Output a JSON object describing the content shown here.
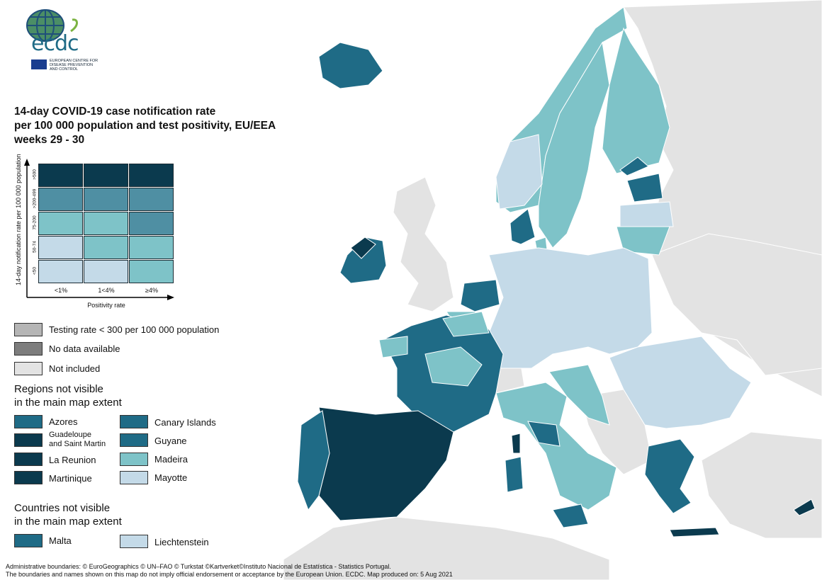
{
  "logo": {
    "wordmark": "ecdc",
    "subtitle_lines": [
      "EUROPEAN CENTRE FOR",
      "DISEASE PREVENTION",
      "AND CONTROL"
    ]
  },
  "title": {
    "lines": [
      "14-day COVID-19 case notification rate",
      "per 100 000 population and test positivity, EU/EEA",
      "weeks 29 - 30"
    ]
  },
  "matrix_legend": {
    "y_axis_label": "14-day notification rate per 100 000 population",
    "x_axis_label": "Positivity rate",
    "row_labels": [
      ">500",
      ">200-499",
      "75-200",
      "50-74",
      "<50"
    ],
    "col_labels": [
      "<1%",
      "1<4%",
      "≥4%"
    ],
    "cell_colors": [
      [
        "#0b3a4e",
        "#0b3a4e",
        "#0b3a4e"
      ],
      [
        "#4f8fa3",
        "#4f8fa3",
        "#4f8fa3"
      ],
      [
        "#7ec3c8",
        "#7ec3c8",
        "#4f8fa3"
      ],
      [
        "#c4dae8",
        "#7ec3c8",
        "#7ec3c8"
      ],
      [
        "#c4dae8",
        "#c4dae8",
        "#7ec3c8"
      ]
    ]
  },
  "status_legend": [
    {
      "label": "Testing rate < 300 per 100 000 population",
      "color": "#b5b5b5"
    },
    {
      "label": "No data available",
      "color": "#7d7d7d"
    },
    {
      "label": "Not included",
      "color": "#e3e3e3"
    }
  ],
  "regions_not_visible": {
    "heading": [
      "Regions not visible",
      "in the main map extent"
    ],
    "items": [
      {
        "label": "Azores",
        "color": "#1f6b86"
      },
      {
        "label": "Guadeloupe and Saint Martin",
        "label_lines": [
          "Guadeloupe",
          "and Saint Martin"
        ],
        "color": "#0b3a4e"
      },
      {
        "label": "La Reunion",
        "color": "#0b3a4e"
      },
      {
        "label": "Martinique",
        "color": "#0b3a4e"
      },
      {
        "label": "Canary Islands",
        "color": "#1f6b86"
      },
      {
        "label": "Guyane",
        "color": "#1f6b86"
      },
      {
        "label": "Madeira",
        "color": "#7ec3c8"
      },
      {
        "label": "Mayotte",
        "color": "#c4dae8"
      }
    ]
  },
  "countries_not_visible": {
    "heading": [
      "Countries not visible",
      "in the main map extent"
    ],
    "items": [
      {
        "label": "Malta",
        "color": "#1f6b86"
      },
      {
        "label": "Liechtenstein",
        "color": "#c4dae8"
      }
    ]
  },
  "map_colors": {
    "sea": "#ffffff",
    "not_included": "#e3e3e3",
    "light": "#c4dae8",
    "mid_light": "#7ec3c8",
    "mid": "#4f8fa3",
    "strong": "#1f6b86",
    "darkest": "#0b3a4e"
  },
  "footer": {
    "line1": "Administrative boundaries: © EuroGeographics © UN–FAO © Turkstat ©Kartverket©Instituto Nacional de Estatística - Statistics Portugal.",
    "line2": "The boundaries and names shown on this map do not imply official endorsement or acceptance by the European Union. ECDC. Map produced on: 5 Aug 2021"
  }
}
